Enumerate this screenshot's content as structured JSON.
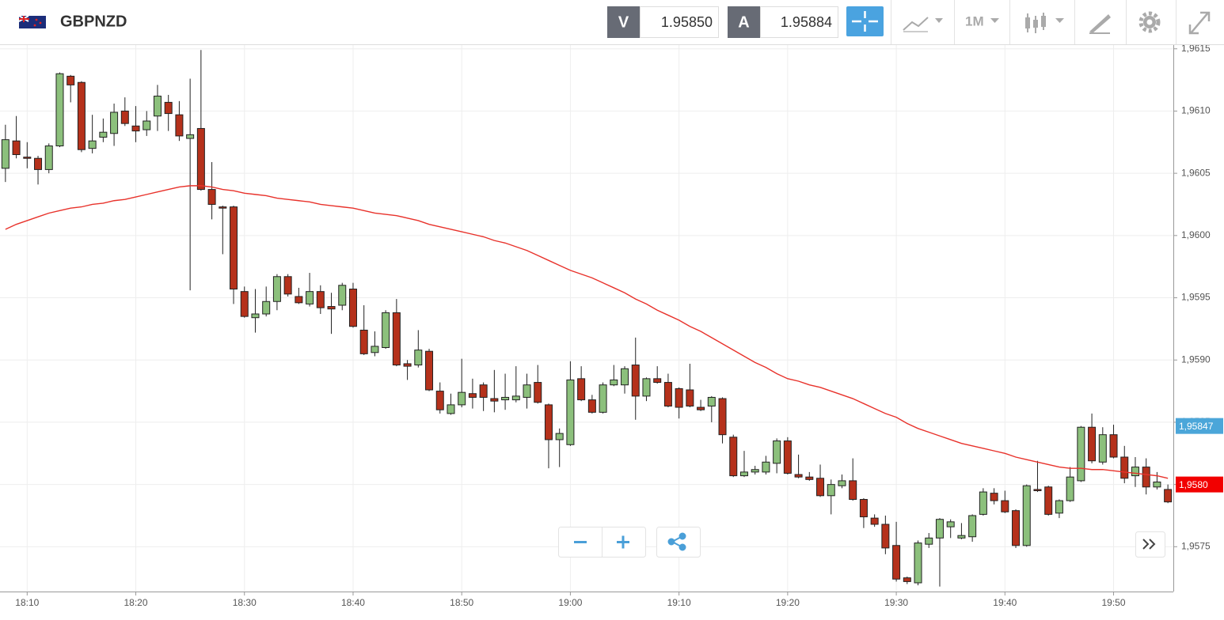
{
  "toolbar": {
    "symbol": "GBPNZD",
    "bid_label": "V",
    "bid": "1.95850",
    "ask_label": "A",
    "ask": "1.95884",
    "timeframe": "1M"
  },
  "chart_data": {
    "type": "candlestick",
    "categories": [
      null,
      null,
      "18:10",
      null,
      null,
      null,
      null,
      null,
      null,
      null,
      null,
      null,
      "18:20",
      null,
      null,
      null,
      null,
      null,
      null,
      null,
      null,
      null,
      "18:30",
      null,
      null,
      null,
      null,
      null,
      null,
      null,
      null,
      null,
      "18:40",
      null,
      null,
      null,
      null,
      null,
      null,
      null,
      null,
      null,
      "18:50",
      null,
      null,
      null,
      null,
      null,
      null,
      null,
      null,
      null,
      "19:00",
      null,
      null,
      null,
      null,
      null,
      null,
      null,
      null,
      null,
      "19:10",
      null,
      null,
      null,
      null,
      null,
      null,
      null,
      null,
      null,
      "19:20",
      null,
      null,
      null,
      null,
      null,
      null,
      null,
      null,
      null,
      "19:30",
      null,
      null,
      null,
      null,
      null,
      null,
      null,
      null,
      null,
      "19:40",
      null,
      null,
      null,
      null,
      null,
      null,
      null,
      null,
      null,
      "19:50",
      null,
      null,
      null,
      null,
      null
    ],
    "open": [
      1.96054,
      1.96076,
      1.96063,
      1.96062,
      1.96053,
      1.96072,
      1.96128,
      1.96123,
      1.9607,
      1.96079,
      1.96082,
      1.961,
      1.96088,
      1.96085,
      1.96096,
      1.96107,
      1.96097,
      1.96078,
      1.96086,
      1.96037,
      1.96023,
      1.96023,
      1.95955,
      1.95934,
      1.95937,
      1.95947,
      1.95967,
      1.95951,
      1.95945,
      1.95955,
      1.95943,
      1.95944,
      1.95957,
      1.95924,
      1.95906,
      1.9591,
      1.95938,
      1.95897,
      1.95896,
      1.95907,
      1.95875,
      1.95857,
      1.95864,
      1.95873,
      1.9588,
      1.95869,
      1.95868,
      1.95868,
      1.9587,
      1.95882,
      1.95864,
      1.95836,
      1.95832,
      1.95885,
      1.95868,
      1.95858,
      1.9588,
      1.9588,
      1.95896,
      1.95871,
      1.95885,
      1.95882,
      1.95877,
      1.95876,
      1.95862,
      1.95863,
      1.95869,
      1.95838,
      1.95807,
      1.9581,
      1.9581,
      1.95817,
      1.95835,
      1.95808,
      1.95806,
      1.95805,
      1.95791,
      1.95799,
      1.95803,
      1.95788,
      1.95773,
      1.95768,
      1.95751,
      1.95725,
      1.95721,
      1.95752,
      1.95757,
      1.95766,
      1.95757,
      1.95758,
      1.95776,
      1.95793,
      1.95787,
      1.95779,
      1.95751,
      1.95796,
      1.95798,
      1.95777,
      1.95787,
      1.95803,
      1.95846,
      1.95818,
      1.9584,
      1.95822,
      1.95807,
      1.95814,
      1.95798,
      1.95796
    ],
    "high": [
      1.96089,
      1.96096,
      1.96075,
      1.96064,
      1.96074,
      1.96131,
      1.96129,
      1.96124,
      1.96097,
      1.96094,
      1.96106,
      1.96111,
      1.96104,
      1.961,
      1.96121,
      1.96113,
      1.96108,
      1.96126,
      1.96149,
      1.96059,
      1.96024,
      1.96024,
      1.95959,
      1.95957,
      1.95959,
      1.95969,
      1.95969,
      1.95958,
      1.9597,
      1.9596,
      1.95954,
      1.95962,
      1.95962,
      1.95944,
      1.95923,
      1.9594,
      1.95949,
      1.959,
      1.95924,
      1.95909,
      1.95882,
      1.95873,
      1.95901,
      1.95885,
      1.95882,
      1.95892,
      1.95889,
      1.95895,
      1.95889,
      1.95896,
      1.95865,
      1.95845,
      1.95899,
      1.95895,
      1.95872,
      1.95882,
      1.95896,
      1.95895,
      1.95918,
      1.95886,
      1.95895,
      1.95889,
      1.95878,
      1.95897,
      1.95868,
      1.95871,
      1.9587,
      1.9584,
      1.95827,
      1.95815,
      1.95823,
      1.95837,
      1.95838,
      1.95824,
      1.9581,
      1.95816,
      1.95804,
      1.95808,
      1.95821,
      1.95789,
      1.95776,
      1.95775,
      1.9577,
      1.95726,
      1.95755,
      1.95761,
      1.95773,
      1.95772,
      1.95769,
      1.95776,
      1.95797,
      1.95797,
      1.95795,
      1.9578,
      1.958,
      1.95819,
      1.95799,
      1.95788,
      1.95814,
      1.95847,
      1.95857,
      1.95846,
      1.95848,
      1.95831,
      1.95822,
      1.95821,
      1.9581,
      1.958
    ],
    "low": [
      1.96043,
      1.96062,
      1.96054,
      1.96041,
      1.9605,
      1.96071,
      1.96107,
      1.96067,
      1.96066,
      1.96075,
      1.96072,
      1.96088,
      1.96075,
      1.9608,
      1.96084,
      1.96084,
      1.96076,
      1.95956,
      1.96036,
      1.96013,
      1.95985,
      1.95945,
      1.95934,
      1.95922,
      1.95935,
      1.9594,
      1.95951,
      1.95945,
      1.95943,
      1.95937,
      1.95921,
      1.9594,
      1.95926,
      1.95904,
      1.95903,
      1.95909,
      1.95895,
      1.95884,
      1.95894,
      1.95875,
      1.95857,
      1.95856,
      1.95862,
      1.95861,
      1.95859,
      1.95858,
      1.9586,
      1.95866,
      1.95861,
      1.95865,
      1.95813,
      1.95814,
      1.95831,
      1.95867,
      1.95857,
      1.95857,
      1.95879,
      1.95873,
      1.95852,
      1.95867,
      1.95881,
      1.95862,
      1.95853,
      1.95862,
      1.95859,
      1.9585,
      1.95833,
      1.95806,
      1.95806,
      1.95808,
      1.95808,
      1.95809,
      1.95808,
      1.95805,
      1.95803,
      1.9579,
      1.95776,
      1.95797,
      1.95787,
      1.95765,
      1.95766,
      1.95744,
      1.95722,
      1.9572,
      1.95719,
      1.95749,
      1.95718,
      1.95757,
      1.95756,
      1.95754,
      1.95775,
      1.95784,
      1.95777,
      1.95749,
      1.9575,
      1.95794,
      1.95775,
      1.95773,
      1.95786,
      1.95802,
      1.95817,
      1.95816,
      1.95821,
      1.95801,
      1.95798,
      1.95792,
      1.95796,
      1.95785
    ],
    "close": [
      1.96077,
      1.96065,
      1.96062,
      1.96053,
      1.96072,
      1.9613,
      1.96121,
      1.96069,
      1.96076,
      1.96083,
      1.96099,
      1.9609,
      1.96084,
      1.96092,
      1.96112,
      1.96098,
      1.9608,
      1.96081,
      1.96037,
      1.96025,
      1.96022,
      1.95957,
      1.95935,
      1.95937,
      1.95947,
      1.95967,
      1.95953,
      1.95946,
      1.95955,
      1.95942,
      1.95941,
      1.9596,
      1.95927,
      1.95905,
      1.95911,
      1.95938,
      1.95896,
      1.95895,
      1.95908,
      1.95876,
      1.9586,
      1.95864,
      1.95874,
      1.9587,
      1.9587,
      1.95867,
      1.9587,
      1.95871,
      1.9588,
      1.95866,
      1.95836,
      1.95841,
      1.95884,
      1.95868,
      1.95858,
      1.9588,
      1.95884,
      1.95893,
      1.95871,
      1.95885,
      1.95882,
      1.95863,
      1.95862,
      1.95863,
      1.9586,
      1.9587,
      1.9584,
      1.95807,
      1.9581,
      1.95812,
      1.95818,
      1.95835,
      1.95809,
      1.95806,
      1.95804,
      1.95791,
      1.958,
      1.95803,
      1.95788,
      1.95774,
      1.95768,
      1.95749,
      1.95724,
      1.95722,
      1.95753,
      1.95757,
      1.95772,
      1.9577,
      1.95759,
      1.95775,
      1.95794,
      1.95787,
      1.95778,
      1.95751,
      1.95799,
      1.95795,
      1.95776,
      1.95787,
      1.95806,
      1.95846,
      1.95819,
      1.9584,
      1.95822,
      1.95805,
      1.95814,
      1.95798,
      1.95802,
      1.95786
    ],
    "up_color": "#8cc07c",
    "down_color": "#b5311b",
    "moving_average": {
      "color": "#e8322b",
      "values": [
        1.96005,
        1.96009,
        1.96012,
        1.96015,
        1.96018,
        1.9602,
        1.96022,
        1.96023,
        1.96025,
        1.96026,
        1.96028,
        1.96029,
        1.96031,
        1.96033,
        1.96035,
        1.96037,
        1.96039,
        1.9604,
        1.9604,
        1.96039,
        1.96037,
        1.96036,
        1.96034,
        1.96033,
        1.96032,
        1.9603,
        1.96029,
        1.96028,
        1.96027,
        1.96025,
        1.96024,
        1.96023,
        1.96022,
        1.9602,
        1.96018,
        1.96017,
        1.96016,
        1.96014,
        1.96012,
        1.96009,
        1.96007,
        1.96005,
        1.96003,
        1.96001,
        1.95999,
        1.95996,
        1.95994,
        1.95991,
        1.95988,
        1.95984,
        1.9598,
        1.95976,
        1.95972,
        1.95969,
        1.95966,
        1.95962,
        1.95958,
        1.95954,
        1.95949,
        1.95945,
        1.9594,
        1.95936,
        1.95932,
        1.95927,
        1.95923,
        1.95918,
        1.95913,
        1.95908,
        1.95903,
        1.95898,
        1.95894,
        1.95889,
        1.95885,
        1.95883,
        1.9588,
        1.95878,
        1.95875,
        1.95872,
        1.95869,
        1.95865,
        1.95861,
        1.95857,
        1.95854,
        1.95849,
        1.95845,
        1.95842,
        1.95839,
        1.95836,
        1.95833,
        1.95831,
        1.95829,
        1.95827,
        1.95825,
        1.95822,
        1.9582,
        1.95818,
        1.95816,
        1.95814,
        1.95813,
        1.95813,
        1.95812,
        1.95812,
        1.95811,
        1.9581,
        1.95809,
        1.95808,
        1.95807,
        1.95805
      ]
    },
    "ylim": [
      1.95714,
      1.96153
    ],
    "yticks": [
      {
        "value": 1.9575,
        "label": "1,9575"
      },
      {
        "value": 1.958,
        "label": "1,9580"
      },
      {
        "value": 1.9585,
        "label": "1,9585"
      },
      {
        "value": 1.959,
        "label": "1,9590"
      },
      {
        "value": 1.9595,
        "label": "1,9595"
      },
      {
        "value": 1.96,
        "label": "1,9600"
      },
      {
        "value": 1.9605,
        "label": "1,9605"
      },
      {
        "value": 1.961,
        "label": "1,9610"
      },
      {
        "value": 1.9615,
        "label": "1,9615"
      }
    ],
    "grid": true,
    "price_tags": [
      {
        "value": 1.95847,
        "label": "1,95847",
        "color": "#4ba6d9"
      },
      {
        "value": 1.958,
        "label": "1,9580",
        "color": "#f20000"
      }
    ]
  }
}
